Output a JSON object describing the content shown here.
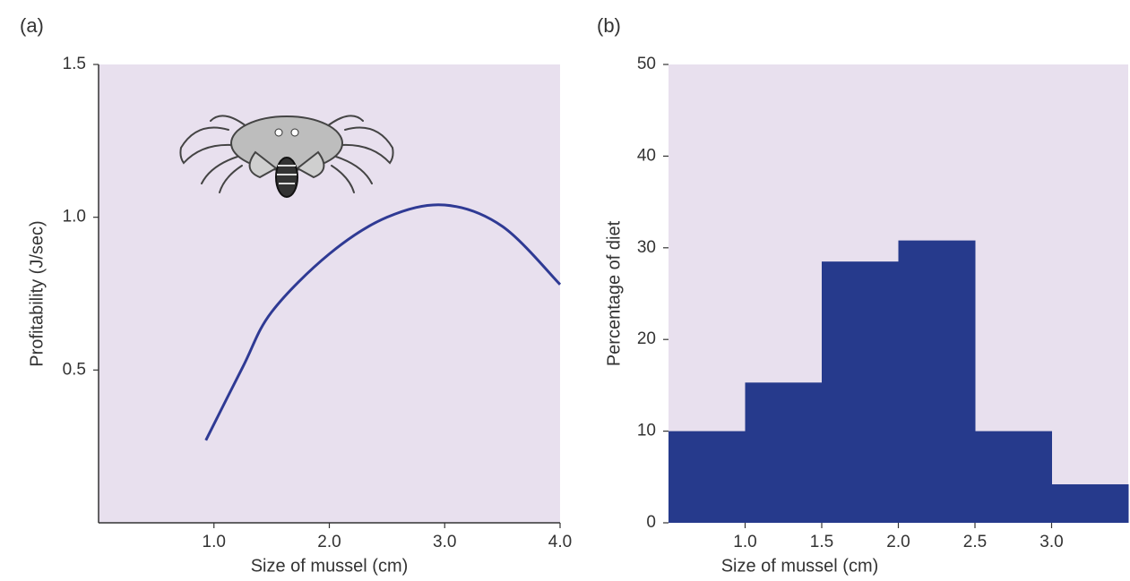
{
  "chart_data": [
    {
      "type": "line",
      "panel_label": "(a)",
      "x_label": "Size of mussel (cm)",
      "y_label": "Profitability (J/sec)",
      "series": [
        {
          "color": "#2f3a94",
          "x": [
            0.93,
            1.25,
            1.5,
            2.0,
            2.5,
            3.0,
            3.5,
            4.0
          ],
          "values": [
            0.27,
            0.51,
            0.69,
            0.88,
            1.0,
            1.04,
            0.97,
            0.78
          ]
        }
      ],
      "xlim": [
        0,
        4
      ],
      "ylim": [
        0,
        1.5
      ],
      "xticks": [
        {
          "value": 1,
          "label": "1.0"
        },
        {
          "value": 2,
          "label": "2.0"
        },
        {
          "value": 3,
          "label": "3.0"
        },
        {
          "value": 4,
          "label": "4.0"
        }
      ],
      "yticks": [
        0.5,
        {
          "value": 1,
          "label": "1.0"
        },
        1.5
      ],
      "background": "#e8e0ee",
      "axis_lines": true
    },
    {
      "type": "histogram",
      "panel_label": "(b)",
      "x_label": "Size of mussel (cm)",
      "y_label": "Percentage of diet",
      "bins": [
        0.5,
        1.0,
        1.5,
        2.0,
        2.5,
        3.0,
        3.5
      ],
      "values": [
        10,
        15.3,
        28.5,
        30.8,
        10,
        4.2
      ],
      "color": "#263a8c",
      "xlim": [
        0.5,
        3.5
      ],
      "ylim": [
        0,
        50
      ],
      "xticks": [
        {
          "value": 1,
          "label": "1.0"
        },
        1.5,
        {
          "value": 2,
          "label": "2.0"
        },
        2.5,
        {
          "value": 3,
          "label": "3.0"
        }
      ],
      "yticks": [
        0,
        10,
        20,
        30,
        40,
        50
      ],
      "background": "#e8e0ee",
      "axis_lines": false
    }
  ]
}
